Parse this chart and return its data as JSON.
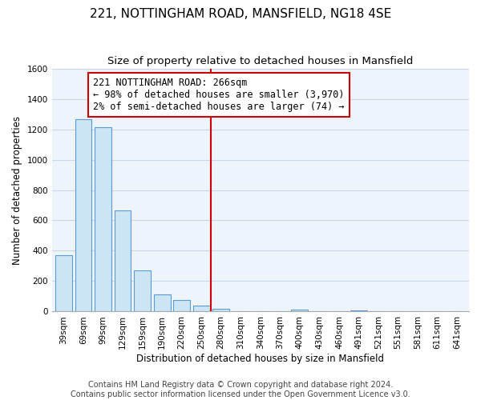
{
  "title": "221, NOTTINGHAM ROAD, MANSFIELD, NG18 4SE",
  "subtitle": "Size of property relative to detached houses in Mansfield",
  "xlabel": "Distribution of detached houses by size in Mansfield",
  "ylabel": "Number of detached properties",
  "bar_labels": [
    "39sqm",
    "69sqm",
    "99sqm",
    "129sqm",
    "159sqm",
    "190sqm",
    "220sqm",
    "250sqm",
    "280sqm",
    "310sqm",
    "340sqm",
    "370sqm",
    "400sqm",
    "430sqm",
    "460sqm",
    "491sqm",
    "521sqm",
    "551sqm",
    "581sqm",
    "611sqm",
    "641sqm"
  ],
  "bar_values": [
    370,
    1265,
    1215,
    665,
    270,
    115,
    75,
    40,
    20,
    5,
    5,
    5,
    15,
    0,
    0,
    10,
    0,
    0,
    0,
    0,
    0
  ],
  "bar_color": "#cce5f5",
  "bar_edge_color": "#5b9bd5",
  "vline_x": 7.5,
  "vline_label": "221 NOTTINGHAM ROAD: 266sqm",
  "annotation_line1": "← 98% of detached houses are smaller (3,970)",
  "annotation_line2": "2% of semi-detached houses are larger (74) →",
  "ylim": [
    0,
    1600
  ],
  "yticks": [
    0,
    200,
    400,
    600,
    800,
    1000,
    1200,
    1400,
    1600
  ],
  "footer_line1": "Contains HM Land Registry data © Crown copyright and database right 2024.",
  "footer_line2": "Contains public sector information licensed under the Open Government Licence v3.0.",
  "background_color": "#ffffff",
  "plot_bg_color": "#eef4fb",
  "grid_color": "#c8d8e8",
  "annotation_box_color": "#ffffff",
  "annotation_box_edge_color": "#cc0000",
  "vline_color": "#cc0000",
  "title_fontsize": 11,
  "subtitle_fontsize": 9.5,
  "annotation_fontsize": 8.5,
  "footer_fontsize": 7,
  "axis_label_fontsize": 8.5,
  "tick_fontsize": 7.5,
  "ylabel_fontsize": 8.5
}
